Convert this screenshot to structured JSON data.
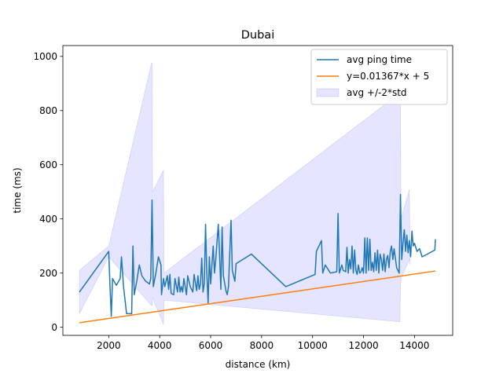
{
  "chart_data": {
    "type": "line",
    "title": "Dubai",
    "xlabel": "distance (km)",
    "ylabel": "time (ms)",
    "xlim": [
      200,
      15500
    ],
    "ylim": [
      -30,
      1040
    ],
    "xticks": [
      2000,
      4000,
      6000,
      8000,
      10000,
      12000,
      14000
    ],
    "yticks": [
      0,
      200,
      400,
      600,
      800,
      1000
    ],
    "grid": false,
    "legend_position": "top-right",
    "series": [
      {
        "name": "avg ping time",
        "type": "line",
        "color": "#1f77b4",
        "points": [
          [
            850,
            130
          ],
          [
            2000,
            280
          ],
          [
            2050,
            150
          ],
          [
            2100,
            40
          ],
          [
            2150,
            180
          ],
          [
            2300,
            155
          ],
          [
            2450,
            180
          ],
          [
            2500,
            260
          ],
          [
            2580,
            150
          ],
          [
            2700,
            50
          ],
          [
            2900,
            50
          ],
          [
            2950,
            300
          ],
          [
            3000,
            120
          ],
          [
            3100,
            170
          ],
          [
            3200,
            230
          ],
          [
            3300,
            190
          ],
          [
            3450,
            170
          ],
          [
            3600,
            160
          ],
          [
            3650,
            180
          ],
          [
            3700,
            470
          ],
          [
            3750,
            150
          ],
          [
            3850,
            200
          ],
          [
            3950,
            260
          ],
          [
            4050,
            230
          ],
          [
            4070,
            120
          ],
          [
            4150,
            180
          ],
          [
            4200,
            150
          ],
          [
            4300,
            190
          ],
          [
            4350,
            140
          ],
          [
            4400,
            195
          ],
          [
            4450,
            125
          ],
          [
            4550,
            120
          ],
          [
            4600,
            180
          ],
          [
            4700,
            130
          ],
          [
            4750,
            185
          ],
          [
            4800,
            130
          ],
          [
            4850,
            150
          ],
          [
            4900,
            130
          ],
          [
            4950,
            180
          ],
          [
            5050,
            120
          ],
          [
            5100,
            190
          ],
          [
            5200,
            150
          ],
          [
            5300,
            130
          ],
          [
            5350,
            195
          ],
          [
            5450,
            135
          ],
          [
            5500,
            190
          ],
          [
            5550,
            140
          ],
          [
            5600,
            160
          ],
          [
            5650,
            255
          ],
          [
            5700,
            130
          ],
          [
            5750,
            160
          ],
          [
            5800,
            380
          ],
          [
            5850,
            200
          ],
          [
            5900,
            90
          ],
          [
            5950,
            260
          ],
          [
            6000,
            160
          ],
          [
            6100,
            300
          ],
          [
            6150,
            200
          ],
          [
            6200,
            250
          ],
          [
            6300,
            380
          ],
          [
            6350,
            270
          ],
          [
            6400,
            140
          ],
          [
            6450,
            370
          ],
          [
            6500,
            190
          ],
          [
            6600,
            135
          ],
          [
            6650,
            120
          ],
          [
            6700,
            150
          ],
          [
            6800,
            395
          ],
          [
            6850,
            210
          ],
          [
            6950,
            170
          ],
          [
            7000,
            235
          ],
          [
            7600,
            270
          ],
          [
            8950,
            150
          ],
          [
            10100,
            195
          ],
          [
            10150,
            280
          ],
          [
            10350,
            320
          ],
          [
            10400,
            200
          ],
          [
            10500,
            230
          ],
          [
            10700,
            200
          ],
          [
            10950,
            205
          ],
          [
            11000,
            420
          ],
          [
            11050,
            200
          ],
          [
            11150,
            230
          ],
          [
            11200,
            210
          ],
          [
            11300,
            205
          ],
          [
            11350,
            295
          ],
          [
            11400,
            200
          ],
          [
            11450,
            250
          ],
          [
            11500,
            215
          ],
          [
            11550,
            300
          ],
          [
            11600,
            200
          ],
          [
            11650,
            285
          ],
          [
            11700,
            210
          ],
          [
            11750,
            195
          ],
          [
            11800,
            230
          ],
          [
            11850,
            200
          ],
          [
            11900,
            205
          ],
          [
            11950,
            220
          ],
          [
            12000,
            200
          ],
          [
            12050,
            330
          ],
          [
            12100,
            200
          ],
          [
            12150,
            330
          ],
          [
            12200,
            210
          ],
          [
            12250,
            325
          ],
          [
            12300,
            210
          ],
          [
            12350,
            240
          ],
          [
            12400,
            205
          ],
          [
            12450,
            275
          ],
          [
            12500,
            210
          ],
          [
            12550,
            285
          ],
          [
            12600,
            200
          ],
          [
            12650,
            270
          ],
          [
            12700,
            250
          ],
          [
            12750,
            210
          ],
          [
            12800,
            270
          ],
          [
            12850,
            205
          ],
          [
            12900,
            250
          ],
          [
            12950,
            265
          ],
          [
            13000,
            220
          ],
          [
            13050,
            280
          ],
          [
            13100,
            300
          ],
          [
            13150,
            250
          ],
          [
            13200,
            290
          ],
          [
            13300,
            220
          ],
          [
            13400,
            200
          ],
          [
            13450,
            490
          ],
          [
            13500,
            250
          ],
          [
            13550,
            310
          ],
          [
            13600,
            360
          ],
          [
            13650,
            280
          ],
          [
            13700,
            340
          ],
          [
            13750,
            275
          ],
          [
            13800,
            320
          ],
          [
            13850,
            260
          ],
          [
            13900,
            355
          ],
          [
            13950,
            300
          ],
          [
            14000,
            310
          ],
          [
            14100,
            280
          ],
          [
            14200,
            290
          ],
          [
            14300,
            260
          ],
          [
            14800,
            285
          ],
          [
            14820,
            325
          ]
        ]
      },
      {
        "name": "y=0.01367*x + 5",
        "type": "line",
        "color": "#ff7f0e",
        "slope": 0.01367,
        "intercept": 5,
        "x_range": [
          850,
          14820
        ]
      },
      {
        "name": "avg +/-2*std",
        "type": "area",
        "color": "#0000ff",
        "band": [
          [
            850,
            50,
            210
          ],
          [
            2000,
            260,
            300
          ],
          [
            3680,
            80,
            975
          ],
          [
            3700,
            80,
            975
          ],
          [
            3720,
            110,
            500
          ],
          [
            4150,
            10,
            580
          ],
          [
            4170,
            100,
            200
          ],
          [
            13430,
            20,
            865
          ],
          [
            13450,
            150,
            810
          ],
          [
            13470,
            180,
            400
          ],
          [
            13800,
            250,
            510
          ],
          [
            13820,
            230,
            330
          ]
        ]
      }
    ]
  }
}
